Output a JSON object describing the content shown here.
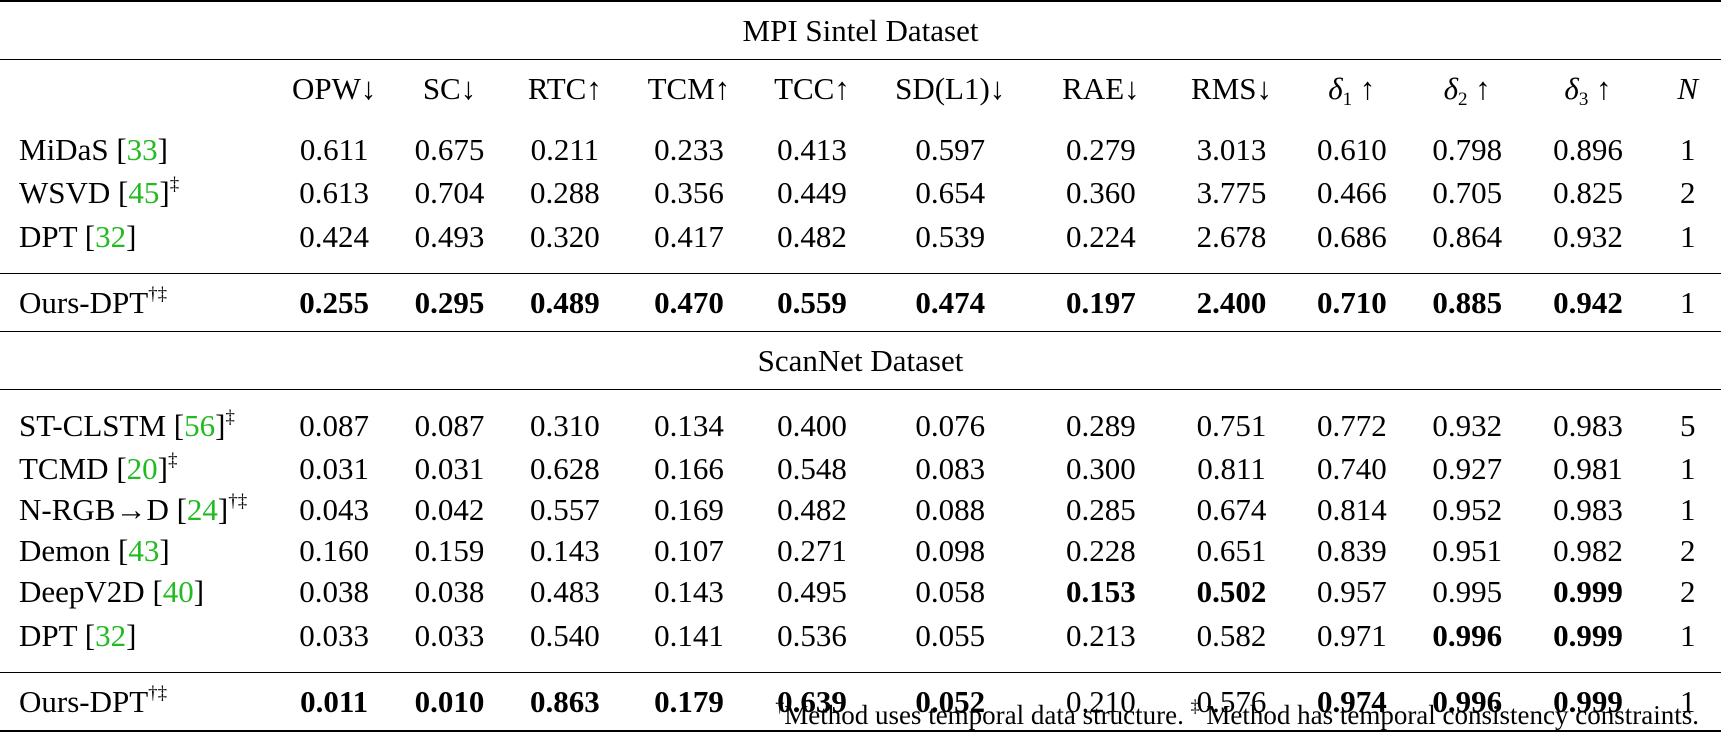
{
  "sections": [
    {
      "title": "MPI Sintel Dataset",
      "rows": [
        {
          "method": "MiDaS",
          "ref": "33",
          "marks": "",
          "values": [
            "0.611",
            "0.675",
            "0.211",
            "0.233",
            "0.413",
            "0.597",
            "0.279",
            "3.013",
            "0.610",
            "0.798",
            "0.896",
            "1"
          ],
          "bold": []
        },
        {
          "method": "WSVD",
          "ref": "45",
          "marks": "‡",
          "values": [
            "0.613",
            "0.704",
            "0.288",
            "0.356",
            "0.449",
            "0.654",
            "0.360",
            "3.775",
            "0.466",
            "0.705",
            "0.825",
            "2"
          ],
          "bold": []
        },
        {
          "method": "DPT",
          "ref": "32",
          "marks": "",
          "values": [
            "0.424",
            "0.493",
            "0.320",
            "0.417",
            "0.482",
            "0.539",
            "0.224",
            "2.678",
            "0.686",
            "0.864",
            "0.932",
            "1"
          ],
          "bold": []
        }
      ],
      "ours": {
        "method": "Ours-DPT",
        "marks": "†‡",
        "values": [
          "0.255",
          "0.295",
          "0.489",
          "0.470",
          "0.559",
          "0.474",
          "0.197",
          "2.400",
          "0.710",
          "0.885",
          "0.942",
          "1"
        ],
        "bold": [
          0,
          1,
          2,
          3,
          4,
          5,
          6,
          7,
          8,
          9,
          10
        ]
      }
    },
    {
      "title": "ScanNet Dataset",
      "rows": [
        {
          "method": "ST-CLSTM",
          "ref": "56",
          "marks": "‡",
          "values": [
            "0.087",
            "0.087",
            "0.310",
            "0.134",
            "0.400",
            "0.076",
            "0.289",
            "0.751",
            "0.772",
            "0.932",
            "0.983",
            "5"
          ],
          "bold": []
        },
        {
          "method": "TCMD",
          "ref": "20",
          "marks": "‡",
          "values": [
            "0.031",
            "0.031",
            "0.628",
            "0.166",
            "0.548",
            "0.083",
            "0.300",
            "0.811",
            "0.740",
            "0.927",
            "0.981",
            "1"
          ],
          "bold": []
        },
        {
          "method": "N-RGB→D",
          "ref": "24",
          "marks": "†‡",
          "values": [
            "0.043",
            "0.042",
            "0.557",
            "0.169",
            "0.482",
            "0.088",
            "0.285",
            "0.674",
            "0.814",
            "0.952",
            "0.983",
            "1"
          ],
          "bold": []
        },
        {
          "method": "Demon",
          "ref": "43",
          "marks": "",
          "values": [
            "0.160",
            "0.159",
            "0.143",
            "0.107",
            "0.271",
            "0.098",
            "0.228",
            "0.651",
            "0.839",
            "0.951",
            "0.982",
            "2"
          ],
          "bold": []
        },
        {
          "method": "DeepV2D",
          "ref": "40",
          "marks": "",
          "values": [
            "0.038",
            "0.038",
            "0.483",
            "0.143",
            "0.495",
            "0.058",
            "0.153",
            "0.502",
            "0.957",
            "0.995",
            "0.999",
            "2"
          ],
          "bold": [
            6,
            7,
            10
          ]
        },
        {
          "method": "DPT",
          "ref": "32",
          "marks": "",
          "values": [
            "0.033",
            "0.033",
            "0.540",
            "0.141",
            "0.536",
            "0.055",
            "0.213",
            "0.582",
            "0.971",
            "0.996",
            "0.999",
            "1"
          ],
          "bold": [
            9,
            10
          ]
        }
      ],
      "ours": {
        "method": "Ours-DPT",
        "marks": "†‡",
        "values": [
          "0.011",
          "0.010",
          "0.863",
          "0.179",
          "0.639",
          "0.052",
          "0.210",
          "0.576",
          "0.974",
          "0.996",
          "0.999",
          "1"
        ],
        "bold": [
          0,
          1,
          2,
          3,
          4,
          5,
          8,
          9,
          10
        ]
      }
    }
  ],
  "columns": [
    {
      "label": "OPW↓"
    },
    {
      "label": "SC↓"
    },
    {
      "label": "RTC↑"
    },
    {
      "label": "TCM↑"
    },
    {
      "label": "TCC↑"
    },
    {
      "label": "SD(L1)↓"
    },
    {
      "label": "RAE↓"
    },
    {
      "label": "RMS↓"
    },
    {
      "label": "δ",
      "sub": "1",
      "suffix": " ↑",
      "italic": true
    },
    {
      "label": "δ",
      "sub": "2",
      "suffix": " ↑",
      "italic": true
    },
    {
      "label": "δ",
      "sub": "3",
      "suffix": " ↑",
      "italic": true
    },
    {
      "label": "N",
      "italic": true
    }
  ],
  "footnote": {
    "dagger": "†",
    "dagger_text": "Method uses temporal data structure.",
    "ddagger": "‡",
    "ddagger_text": "Method has temporal consistency constraints."
  },
  "colors": {
    "reference": "#22bb22"
  }
}
